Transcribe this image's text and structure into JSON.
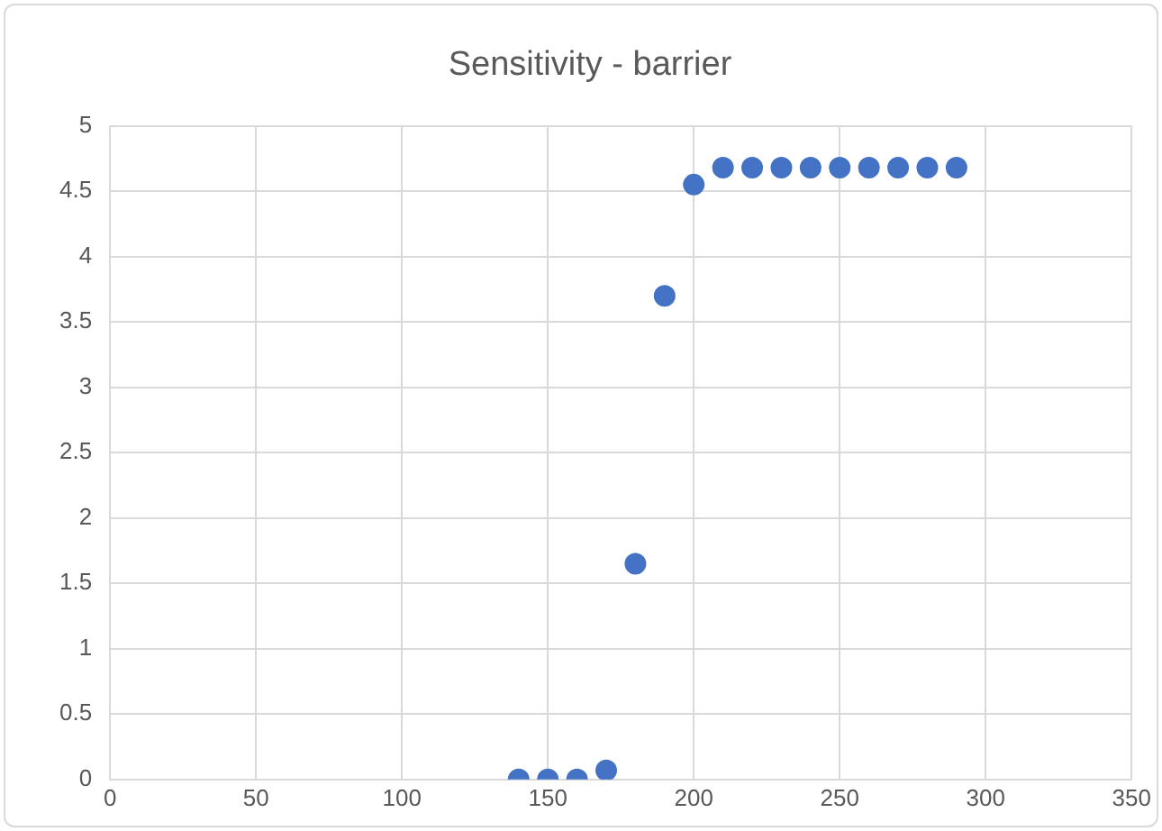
{
  "chart_data": {
    "type": "scatter",
    "title": "Sensitivity - barrier",
    "x": [
      140,
      150,
      160,
      170,
      180,
      190,
      200,
      210,
      220,
      230,
      240,
      250,
      260,
      270,
      280,
      290
    ],
    "series": [
      {
        "color": "#4472c4",
        "values": [
          0,
          0,
          0,
          0.07,
          1.65,
          3.7,
          4.55,
          4.68,
          4.68,
          4.68,
          4.68,
          4.68,
          4.68,
          4.68,
          4.68,
          4.68
        ]
      }
    ],
    "xlim": [
      0,
      350
    ],
    "xticks": [
      0,
      50,
      100,
      150,
      200,
      250,
      300,
      350
    ],
    "ylim": [
      0,
      5
    ],
    "yticks": [
      0,
      0.5,
      1,
      1.5,
      2,
      2.5,
      3,
      3.5,
      4,
      4.5,
      5
    ],
    "grid": true,
    "legend": false,
    "marker": "circle"
  }
}
